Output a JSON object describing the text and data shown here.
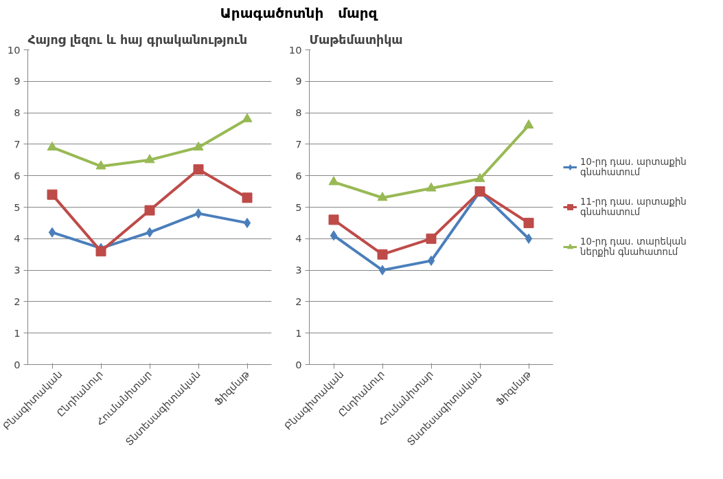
{
  "chart_data": [
    {
      "type": "line",
      "title": "Արագածոտնի   մարզ",
      "subtitle": "Հայոց լեզու և հայ գրականություն",
      "categories": [
        "Բնագիտական",
        "Ընդհանուր",
        "Հումանիտար",
        "Տնտեսագիտական",
        "Ֆիզմաթ"
      ],
      "series": [
        {
          "color": "#4a7ebb",
          "marker": "diamond",
          "values": [
            4.2,
            3.7,
            4.2,
            4.8,
            4.5
          ]
        },
        {
          "color": "#be4b48",
          "marker": "square",
          "values": [
            5.4,
            3.6,
            4.9,
            6.2,
            5.3
          ]
        },
        {
          "color": "#98b954",
          "marker": "triangle",
          "values": [
            6.9,
            6.3,
            6.5,
            6.9,
            7.8
          ]
        }
      ],
      "ylim": [
        0,
        10
      ],
      "yticks": [
        0,
        1,
        2,
        3,
        4,
        5,
        6,
        7,
        8,
        9,
        10
      ],
      "grid": "y"
    },
    {
      "type": "line",
      "subtitle": "Մաթեմատիկա",
      "categories": [
        "Բնագիտական",
        "Ընդհանուր",
        "Հումանիտար",
        "Տնտեսագիտական",
        "Ֆիզմաթ"
      ],
      "series": [
        {
          "name": "10-րդ դաս. արտաքին գնահատում",
          "color": "#4a7ebb",
          "marker": "diamond",
          "values": [
            4.1,
            3.0,
            3.3,
            5.5,
            4.0
          ]
        },
        {
          "name": "11-րդ դաս. արտաքին գնահատում",
          "color": "#be4b48",
          "marker": "square",
          "values": [
            4.6,
            3.5,
            4.0,
            5.5,
            4.5
          ]
        },
        {
          "name": "10-րդ դաս. տարեկան ներքին գնահատում",
          "color": "#98b954",
          "marker": "triangle",
          "values": [
            5.8,
            5.3,
            5.6,
            5.9,
            7.6
          ]
        }
      ],
      "ylim": [
        0,
        10
      ],
      "yticks": [
        0,
        1,
        2,
        3,
        4,
        5,
        6,
        7,
        8,
        9,
        10
      ],
      "grid": "y",
      "legend": "right"
    }
  ]
}
